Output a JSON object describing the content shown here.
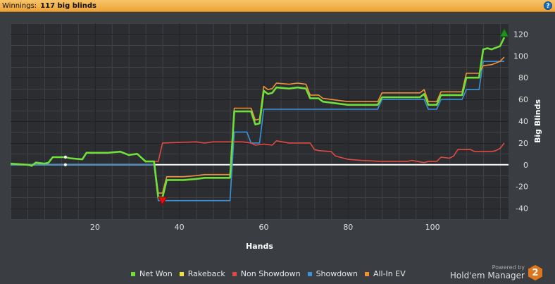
{
  "header": {
    "label": "Winnings:",
    "value": "117 big blinds",
    "help": "?"
  },
  "colors": {
    "net_won": "#6fe03a",
    "rakeback": "#f2e23a",
    "non_showdown": "#e04a44",
    "showdown": "#3b92d8",
    "all_in_ev": "#f0903a",
    "zero_line": "#ffffff",
    "max_marker": "#1f8f1f",
    "min_marker": "#e01010"
  },
  "chart_data": {
    "type": "line",
    "title": "",
    "xlabel": "Hands",
    "ylabel": "Big Blinds",
    "xlim": [
      0,
      118
    ],
    "ylim": [
      -50,
      130
    ],
    "xticks": [
      20,
      40,
      60,
      80,
      100
    ],
    "yticks": [
      -40,
      -20,
      0,
      20,
      40,
      60,
      80,
      100,
      120
    ],
    "grid": true,
    "legend_position": "bottom",
    "series": [
      {
        "name": "Net Won",
        "key": "net_won",
        "points": [
          [
            0,
            1
          ],
          [
            4,
            0
          ],
          [
            5,
            -1
          ],
          [
            6,
            2
          ],
          [
            8,
            1
          ],
          [
            9,
            2
          ],
          [
            10,
            7
          ],
          [
            13,
            7
          ],
          [
            14,
            6
          ],
          [
            17,
            5
          ],
          [
            18,
            11
          ],
          [
            23,
            11
          ],
          [
            26,
            12
          ],
          [
            28,
            9
          ],
          [
            30,
            10
          ],
          [
            32,
            3
          ],
          [
            34,
            3
          ],
          [
            35,
            -30
          ],
          [
            36,
            -30
          ],
          [
            37,
            -14
          ],
          [
            41,
            -14
          ],
          [
            44,
            -13
          ],
          [
            46,
            -12
          ],
          [
            52,
            -12
          ],
          [
            53,
            49
          ],
          [
            57,
            49
          ],
          [
            58,
            37
          ],
          [
            59,
            38
          ],
          [
            60,
            68
          ],
          [
            61,
            65
          ],
          [
            62,
            66
          ],
          [
            63,
            71
          ],
          [
            66,
            70
          ],
          [
            68,
            71
          ],
          [
            70,
            70
          ],
          [
            71,
            61
          ],
          [
            73,
            61
          ],
          [
            74,
            58
          ],
          [
            78,
            56
          ],
          [
            80,
            55
          ],
          [
            85,
            55
          ],
          [
            87,
            55
          ],
          [
            88,
            62
          ],
          [
            97,
            62
          ],
          [
            98,
            65
          ],
          [
            99,
            55
          ],
          [
            101,
            55
          ],
          [
            102,
            64
          ],
          [
            107,
            64
          ],
          [
            108,
            80
          ],
          [
            111,
            80
          ],
          [
            112,
            106
          ],
          [
            113,
            107
          ],
          [
            114,
            106
          ],
          [
            116,
            109
          ],
          [
            117,
            117
          ]
        ]
      },
      {
        "name": "Rakeback",
        "key": "rakeback",
        "points": []
      },
      {
        "name": "Non Showdown",
        "key": "non_showdown",
        "points": [
          [
            0,
            1
          ],
          [
            4,
            0
          ],
          [
            5,
            -1
          ],
          [
            6,
            2
          ],
          [
            8,
            1
          ],
          [
            9,
            2
          ],
          [
            10,
            7
          ],
          [
            13,
            7
          ],
          [
            14,
            6
          ],
          [
            17,
            5
          ],
          [
            18,
            11
          ],
          [
            23,
            11
          ],
          [
            26,
            12
          ],
          [
            28,
            9
          ],
          [
            30,
            10
          ],
          [
            32,
            3
          ],
          [
            34,
            3
          ],
          [
            35,
            3
          ],
          [
            36,
            20
          ],
          [
            44,
            21
          ],
          [
            46,
            20
          ],
          [
            48,
            21
          ],
          [
            55,
            21
          ],
          [
            57,
            20
          ],
          [
            58,
            18
          ],
          [
            60,
            19
          ],
          [
            62,
            18
          ],
          [
            63,
            22
          ],
          [
            66,
            20
          ],
          [
            71,
            20
          ],
          [
            72,
            14
          ],
          [
            73,
            13
          ],
          [
            76,
            12
          ],
          [
            77,
            8
          ],
          [
            78,
            7
          ],
          [
            80,
            5
          ],
          [
            83,
            4
          ],
          [
            88,
            3
          ],
          [
            94,
            3
          ],
          [
            95,
            4
          ],
          [
            98,
            2
          ],
          [
            99,
            3
          ],
          [
            100,
            3
          ],
          [
            101,
            3
          ],
          [
            102,
            7
          ],
          [
            104,
            6
          ],
          [
            105,
            8
          ],
          [
            106,
            14
          ],
          [
            109,
            14
          ],
          [
            110,
            12
          ],
          [
            114,
            12
          ],
          [
            115,
            13
          ],
          [
            116,
            15
          ],
          [
            117,
            20
          ]
        ]
      },
      {
        "name": "Showdown",
        "key": "showdown",
        "points": [
          [
            0,
            0
          ],
          [
            34,
            0
          ],
          [
            35,
            -33
          ],
          [
            52,
            -33
          ],
          [
            53,
            30
          ],
          [
            56,
            30
          ],
          [
            57,
            20
          ],
          [
            58,
            20
          ],
          [
            59,
            20
          ],
          [
            60,
            51
          ],
          [
            84,
            51
          ],
          [
            87,
            51
          ],
          [
            88,
            60
          ],
          [
            98,
            60
          ],
          [
            99,
            51
          ],
          [
            101,
            51
          ],
          [
            102,
            60
          ],
          [
            107,
            60
          ],
          [
            108,
            69
          ],
          [
            111,
            69
          ],
          [
            112,
            95
          ],
          [
            117,
            95
          ]
        ]
      },
      {
        "name": "All-In EV",
        "key": "all_in_ev",
        "points": [
          [
            0,
            1
          ],
          [
            4,
            0
          ],
          [
            5,
            -1
          ],
          [
            6,
            2
          ],
          [
            8,
            1
          ],
          [
            9,
            2
          ],
          [
            10,
            7
          ],
          [
            13,
            7
          ],
          [
            14,
            6
          ],
          [
            17,
            5
          ],
          [
            18,
            11
          ],
          [
            23,
            11
          ],
          [
            26,
            12
          ],
          [
            28,
            9
          ],
          [
            30,
            10
          ],
          [
            32,
            3
          ],
          [
            34,
            3
          ],
          [
            35,
            -26
          ],
          [
            36,
            -26
          ],
          [
            37,
            -11
          ],
          [
            41,
            -11
          ],
          [
            44,
            -10
          ],
          [
            46,
            -9
          ],
          [
            52,
            -9
          ],
          [
            53,
            52
          ],
          [
            57,
            52
          ],
          [
            58,
            41
          ],
          [
            59,
            42
          ],
          [
            60,
            72
          ],
          [
            61,
            69
          ],
          [
            62,
            70
          ],
          [
            63,
            75
          ],
          [
            66,
            74
          ],
          [
            68,
            75
          ],
          [
            70,
            74
          ],
          [
            71,
            64
          ],
          [
            73,
            64
          ],
          [
            74,
            61
          ],
          [
            78,
            59
          ],
          [
            80,
            58
          ],
          [
            85,
            58
          ],
          [
            87,
            58
          ],
          [
            88,
            66
          ],
          [
            97,
            66
          ],
          [
            98,
            69
          ],
          [
            99,
            58
          ],
          [
            101,
            58
          ],
          [
            102,
            67
          ],
          [
            107,
            67
          ],
          [
            108,
            84
          ],
          [
            111,
            84
          ],
          [
            112,
            91
          ],
          [
            114,
            92
          ],
          [
            116,
            95
          ],
          [
            117,
            99
          ]
        ]
      }
    ],
    "markers": [
      {
        "name": "max",
        "x": 117,
        "y": 121,
        "shape": "triangle-up"
      },
      {
        "name": "min",
        "x": 36,
        "y": -33,
        "shape": "triangle-down"
      },
      {
        "name": "marker-1",
        "x": 13,
        "y": 7,
        "shape": "dot"
      },
      {
        "name": "marker-2",
        "x": 13,
        "y": 0,
        "shape": "dot"
      }
    ]
  },
  "branding": {
    "small": "Powered by",
    "big": "Hold'em Manager",
    "logo": "2"
  }
}
